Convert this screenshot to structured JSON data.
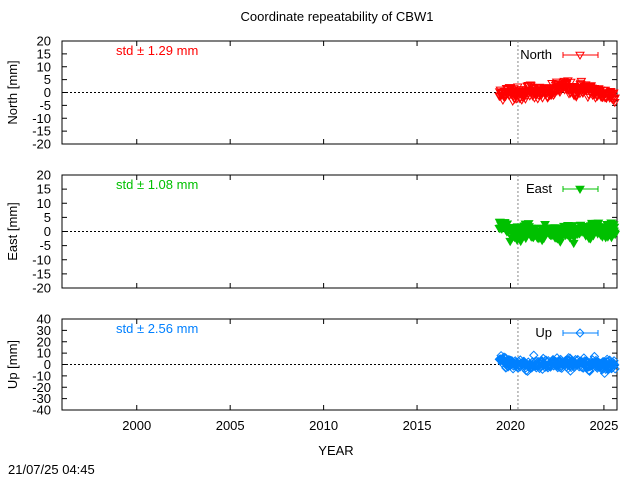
{
  "chart_data": {
    "type": "scatter",
    "title": "Coordinate repeatability of CBW1",
    "xlabel": "YEAR",
    "xlim": [
      1996,
      2025.7
    ],
    "xticks": [
      2000,
      2005,
      2010,
      2015,
      2020,
      2025
    ],
    "vline_x": 2020.4,
    "timestamp": "21/07/25 04:45",
    "panels": [
      {
        "name": "North",
        "ylabel": "North [mm]",
        "ylim": [
          -20,
          20
        ],
        "yticks": [
          20,
          15,
          10,
          5,
          0,
          -5,
          -10,
          -15,
          -20
        ],
        "std_label": "std ± 1.29 mm",
        "color": "#ff0000",
        "marker": "triangle-down-open",
        "std": 1.29,
        "x_start": 2019.4,
        "x_end": 2025.6,
        "sample_points": [
          [
            2019.4,
            -1.0
          ],
          [
            2019.8,
            0.5
          ],
          [
            2020.2,
            0.0
          ],
          [
            2020.6,
            -0.8
          ],
          [
            2021.0,
            1.0
          ],
          [
            2021.5,
            0.2
          ],
          [
            2022.0,
            -0.5
          ],
          [
            2022.5,
            1.5
          ],
          [
            2023.0,
            2.5
          ],
          [
            2023.4,
            0.3
          ],
          [
            2023.8,
            2.0
          ],
          [
            2024.2,
            1.0
          ],
          [
            2024.6,
            0.0
          ],
          [
            2025.0,
            -0.5
          ],
          [
            2025.5,
            -1.0
          ]
        ]
      },
      {
        "name": "East",
        "ylabel": "East [mm]",
        "ylim": [
          -20,
          20
        ],
        "yticks": [
          20,
          15,
          10,
          5,
          0,
          -5,
          -10,
          -15,
          -20
        ],
        "std_label": "std ± 1.08 mm",
        "color": "#00c000",
        "marker": "triangle-down-filled",
        "std": 1.08,
        "x_start": 2019.4,
        "x_end": 2025.6,
        "sample_points": [
          [
            2019.4,
            3.0
          ],
          [
            2019.8,
            1.0
          ],
          [
            2020.2,
            -0.5
          ],
          [
            2020.6,
            -1.0
          ],
          [
            2021.0,
            0.5
          ],
          [
            2021.5,
            -1.5
          ],
          [
            2022.0,
            0.0
          ],
          [
            2022.5,
            -1.0
          ],
          [
            2023.0,
            0.5
          ],
          [
            2023.4,
            -0.5
          ],
          [
            2023.8,
            1.0
          ],
          [
            2024.2,
            0.0
          ],
          [
            2024.6,
            1.5
          ],
          [
            2025.0,
            -0.5
          ],
          [
            2025.5,
            1.0
          ]
        ]
      },
      {
        "name": "Up",
        "ylabel": "Up [mm]",
        "ylim": [
          -40,
          40
        ],
        "yticks": [
          40,
          30,
          20,
          10,
          0,
          -10,
          -20,
          -30,
          -40
        ],
        "std_label": "std ± 2.56 mm",
        "color": "#0080ff",
        "marker": "diamond-open",
        "std": 2.56,
        "x_start": 2019.4,
        "x_end": 2025.6,
        "sample_points": [
          [
            2019.4,
            3.0
          ],
          [
            2019.8,
            2.0
          ],
          [
            2020.2,
            0.0
          ],
          [
            2020.6,
            1.0
          ],
          [
            2021.0,
            -1.0
          ],
          [
            2021.5,
            0.5
          ],
          [
            2022.0,
            -0.5
          ],
          [
            2022.5,
            1.0
          ],
          [
            2023.0,
            0.0
          ],
          [
            2023.4,
            2.0
          ],
          [
            2023.8,
            -1.0
          ],
          [
            2024.2,
            0.5
          ],
          [
            2024.6,
            1.0
          ],
          [
            2025.0,
            -0.5
          ],
          [
            2025.5,
            0.0
          ]
        ]
      }
    ]
  }
}
